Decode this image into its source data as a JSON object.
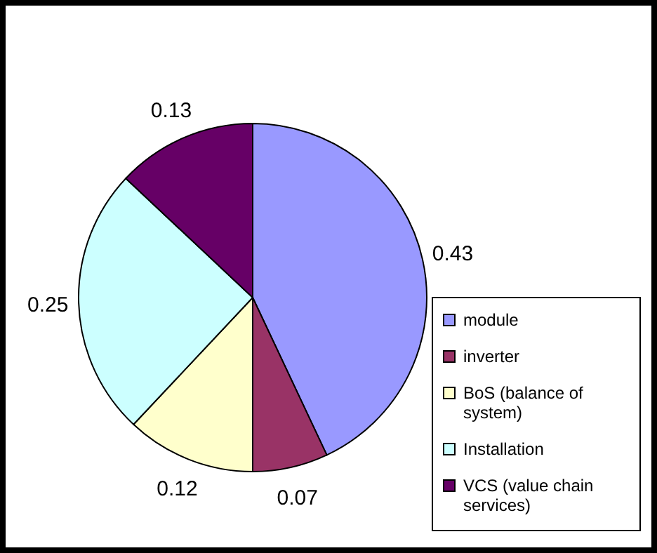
{
  "chart_data": {
    "type": "pie",
    "categories": [
      "module",
      "inverter",
      "BoS (balance of system)",
      "Installation",
      "VCS (value chain services)"
    ],
    "values": [
      0.43,
      0.07,
      0.12,
      0.25,
      0.13
    ],
    "colors": [
      "#9999ff",
      "#993366",
      "#ffffcc",
      "#ccffff",
      "#660066"
    ],
    "data_labels": true,
    "legend": "right"
  }
}
